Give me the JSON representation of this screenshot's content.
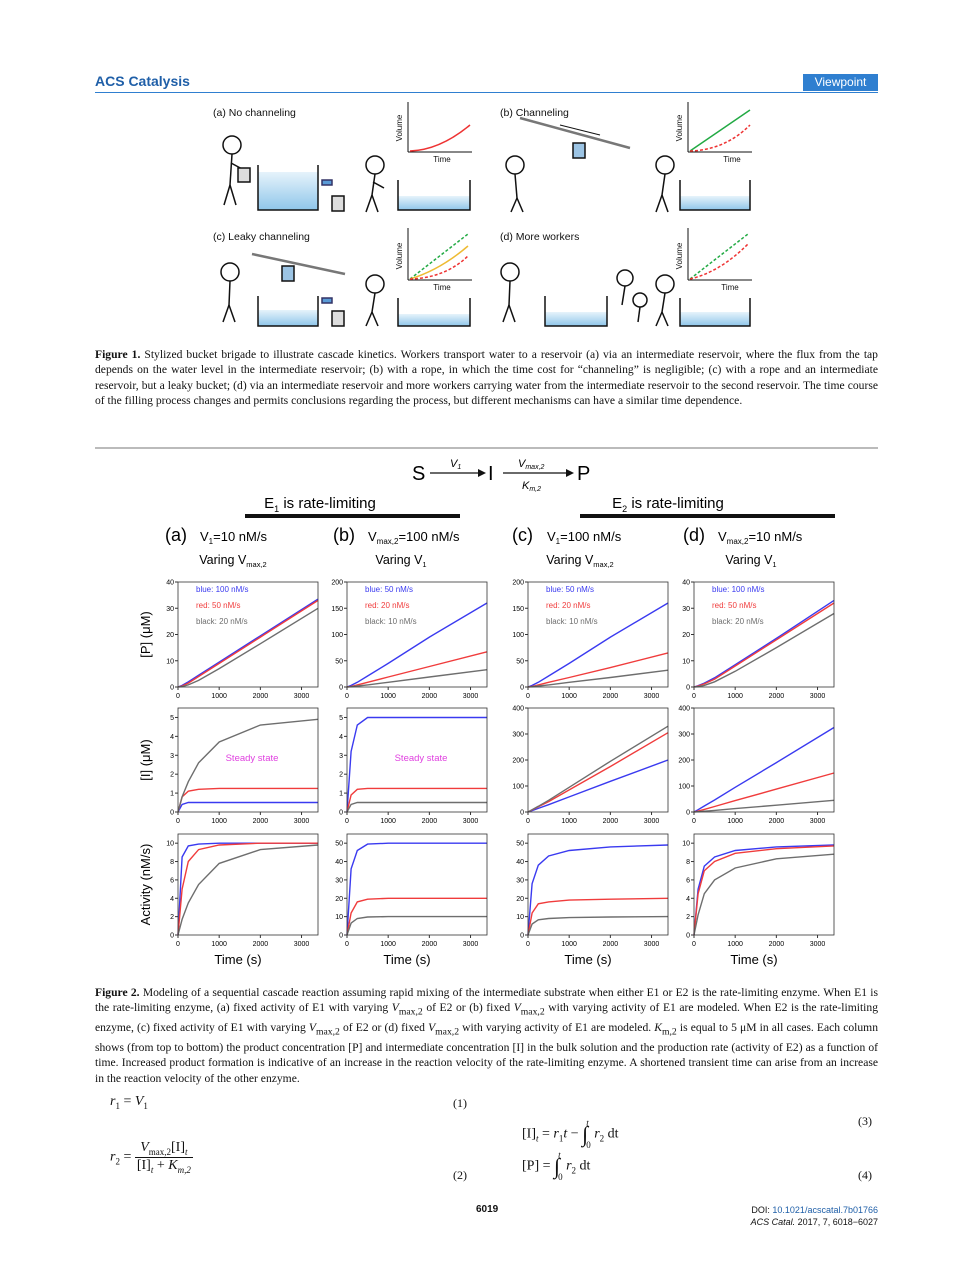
{
  "header": {
    "journal": "ACS Catalysis",
    "section": "Viewpoint"
  },
  "figure1": {
    "panels": [
      {
        "label": "(a) No channeling",
        "y_axis": "Volume",
        "x_axis": "Time"
      },
      {
        "label": "(b) Channeling",
        "y_axis": "Volume",
        "x_axis": "Time"
      },
      {
        "label": "(c) Leaky channeling",
        "y_axis": "Volume",
        "x_axis": "Time"
      },
      {
        "label": "(d) More workers",
        "y_axis": "Volume",
        "x_axis": "Time"
      }
    ],
    "caption_label": "Figure 1.",
    "caption": "Stylized bucket brigade to illustrate cascade kinetics. Workers transport water to a reservoir (a) via an intermediate reservoir, where the flux from the tap depends on the water level in the intermediate reservoir; (b) with a rope, in which the time cost for “channeling” is negligible; (c) with a rope and an intermediate reservoir, but a leaky bucket; (d) via an intermediate reservoir and more workers carrying water from the intermediate reservoir to the second reservoir. The time course of the filling process changes and permits conclusions regarding the process, but different mechanisms can have a similar time dependence."
  },
  "figure2": {
    "scheme": {
      "s": "S",
      "v1": "V",
      "v1_sub": "1",
      "i": "I",
      "vmax": "V",
      "vmax_sub": "max,2",
      "km": "K",
      "km_sub": "m,2",
      "p": "P"
    },
    "headings": [
      {
        "pre": "E",
        "sub": "1",
        "post": " is rate-limiting"
      },
      {
        "pre": "E",
        "sub": "2",
        "post": " is rate-limiting"
      }
    ],
    "columns": [
      {
        "label": "(a)",
        "param": {
          "pre": "V",
          "sub": "1",
          "post": "=10 nM/s"
        },
        "vary": {
          "pre": "Varing V",
          "sub": "max,2"
        }
      },
      {
        "label": "(b)",
        "param": {
          "pre": "V",
          "sub": "max,2",
          "post": "=100 nM/s"
        },
        "vary": {
          "pre": "Varing V",
          "sub": "1"
        }
      },
      {
        "label": "(c)",
        "param": {
          "pre": "V",
          "sub": "1",
          "post": "=100 nM/s"
        },
        "vary": {
          "pre": "Varing V",
          "sub": "max,2"
        }
      },
      {
        "label": "(d)",
        "param": {
          "pre": "V",
          "sub": "max,2",
          "post": "=10 nM/s"
        },
        "vary": {
          "pre": "Varing V",
          "sub": "1"
        }
      }
    ],
    "row_titles": [
      "[P] (μM)",
      "[I] (μM)",
      "Activity (nM/s)"
    ],
    "x_title": "Time (s)",
    "charts": [
      {
        "type": "line",
        "x": [
          0,
          100,
          250,
          500,
          1000,
          2000,
          3400
        ],
        "xlim": [
          0,
          3400
        ],
        "xticks": [
          0,
          1000,
          2000,
          3000
        ],
        "ylim": [
          0,
          40
        ],
        "yticks": [
          0,
          10,
          20,
          30,
          40
        ],
        "series": [
          {
            "name": "blue: 100 nM/s",
            "color": "#3a3af0",
            "values": [
              0,
              0.6,
              2,
              4.5,
              9.5,
              19.5,
              33.5
            ]
          },
          {
            "name": "red: 50 nM/s",
            "color": "#f03c3c",
            "values": [
              0,
              0.4,
              1.5,
              4,
              9,
              19,
              33
            ]
          },
          {
            "name": "black: 20 nM/s",
            "color": "#6e6e6e",
            "values": [
              0,
              0.15,
              0.8,
              2.5,
              7,
              16.5,
              30
            ]
          }
        ]
      },
      {
        "type": "line",
        "x": [
          0,
          100,
          250,
          500,
          1000,
          2000,
          3400
        ],
        "xlim": [
          0,
          3400
        ],
        "xticks": [
          0,
          1000,
          2000,
          3000
        ],
        "ylim": [
          0,
          200
        ],
        "yticks": [
          0,
          50,
          100,
          150,
          200
        ],
        "series": [
          {
            "name": "blue: 50 nM/s",
            "color": "#3a3af0",
            "values": [
              0,
              3,
              9,
              21,
              45,
              95,
              160
            ]
          },
          {
            "name": "red: 20 nM/s",
            "color": "#f03c3c",
            "values": [
              0,
              1.2,
              4,
              9,
              19,
              39,
              67
            ]
          },
          {
            "name": "black: 10 nM/s",
            "color": "#6e6e6e",
            "values": [
              0,
              0.5,
              2,
              4,
              9,
              19,
              33
            ]
          }
        ]
      },
      {
        "type": "line",
        "x": [
          0,
          100,
          250,
          500,
          1000,
          2000,
          3400
        ],
        "xlim": [
          0,
          3400
        ],
        "xticks": [
          0,
          1000,
          2000,
          3000
        ],
        "ylim": [
          0,
          200
        ],
        "yticks": [
          0,
          50,
          100,
          150,
          200
        ],
        "series": [
          {
            "name": "blue: 50 nM/s",
            "color": "#3a3af0",
            "values": [
              0,
              3,
              9,
              21,
              45,
              95,
              160
            ]
          },
          {
            "name": "red: 20 nM/s",
            "color": "#f03c3c",
            "values": [
              0,
              1.2,
              4,
              9,
              18,
              37,
              65
            ]
          },
          {
            "name": "black: 10 nM/s",
            "color": "#6e6e6e",
            "values": [
              0,
              0.5,
              2,
              4,
              9,
              18,
              32
            ]
          }
        ]
      },
      {
        "type": "line",
        "x": [
          0,
          100,
          250,
          500,
          1000,
          2000,
          3400
        ],
        "xlim": [
          0,
          3400
        ],
        "xticks": [
          0,
          1000,
          2000,
          3000
        ],
        "ylim": [
          0,
          40
        ],
        "yticks": [
          0,
          10,
          20,
          30,
          40
        ],
        "series": [
          {
            "name": "blue: 100 nM/s",
            "color": "#3a3af0",
            "values": [
              0,
              0.5,
              1.5,
              3.5,
              8.5,
              18.5,
              33
            ]
          },
          {
            "name": "red: 50 nM/s",
            "color": "#f03c3c",
            "values": [
              0,
              0.4,
              1.2,
              3,
              8,
              18,
              32
            ]
          },
          {
            "name": "black: 20 nM/s",
            "color": "#6e6e6e",
            "values": [
              0,
              0.15,
              0.6,
              2,
              6,
              15,
              28
            ]
          }
        ]
      },
      {
        "type": "line",
        "x": [
          0,
          100,
          250,
          500,
          1000,
          2000,
          3400
        ],
        "xlim": [
          0,
          3400
        ],
        "xticks": [
          0,
          1000,
          2000,
          3000
        ],
        "ylim": [
          0,
          5.5
        ],
        "yticks": [
          0,
          1,
          2,
          3,
          4,
          5
        ],
        "annotation": "Steady state",
        "series": [
          {
            "color": "#3a3af0",
            "values": [
              0,
              0.4,
              0.5,
              0.5,
              0.5,
              0.5,
              0.5
            ]
          },
          {
            "color": "#f03c3c",
            "values": [
              0,
              0.8,
              1.1,
              1.2,
              1.25,
              1.25,
              1.25
            ]
          },
          {
            "color": "#6e6e6e",
            "values": [
              0,
              0.8,
              1.6,
              2.6,
              3.7,
              4.6,
              4.9
            ]
          }
        ]
      },
      {
        "type": "line",
        "x": [
          0,
          100,
          250,
          500,
          1000,
          2000,
          3400
        ],
        "xlim": [
          0,
          3400
        ],
        "xticks": [
          0,
          1000,
          2000,
          3000
        ],
        "ylim": [
          0,
          5.5
        ],
        "yticks": [
          0,
          1,
          2,
          3,
          4,
          5
        ],
        "annotation": "Steady state",
        "series": [
          {
            "color": "#3a3af0",
            "values": [
              0,
              3.2,
              4.6,
              5,
              5,
              5,
              5
            ]
          },
          {
            "color": "#f03c3c",
            "values": [
              0,
              0.9,
              1.2,
              1.25,
              1.25,
              1.25,
              1.25
            ]
          },
          {
            "color": "#6e6e6e",
            "values": [
              0,
              0.4,
              0.5,
              0.5,
              0.5,
              0.5,
              0.5
            ]
          }
        ]
      },
      {
        "type": "line",
        "x": [
          0,
          100,
          250,
          500,
          1000,
          2000,
          3400
        ],
        "xlim": [
          0,
          3400
        ],
        "xticks": [
          0,
          1000,
          2000,
          3000
        ],
        "ylim": [
          0,
          400
        ],
        "yticks": [
          0,
          100,
          200,
          300,
          400
        ],
        "series": [
          {
            "color": "#3a3af0",
            "values": [
              0,
              5.5,
              14,
              28,
              58,
              118,
              200
            ]
          },
          {
            "color": "#f03c3c",
            "values": [
              0,
              8,
              20,
              40,
              85,
              175,
              305
            ]
          },
          {
            "color": "#6e6e6e",
            "values": [
              0,
              9,
              22,
              45,
              95,
              195,
              330
            ]
          }
        ]
      },
      {
        "type": "line",
        "x": [
          0,
          100,
          250,
          500,
          1000,
          2000,
          3400
        ],
        "xlim": [
          0,
          3400
        ],
        "xticks": [
          0,
          1000,
          2000,
          3000
        ],
        "ylim": [
          0,
          400
        ],
        "yticks": [
          0,
          100,
          200,
          300,
          400
        ],
        "series": [
          {
            "color": "#3a3af0",
            "values": [
              0,
              9,
              23,
              46,
              95,
              190,
              325
            ]
          },
          {
            "color": "#f03c3c",
            "values": [
              0,
              4,
              10,
              21,
              44,
              88,
              150
            ]
          },
          {
            "color": "#6e6e6e",
            "values": [
              0,
              1.2,
              3,
              6,
              13,
              26,
              45
            ]
          }
        ]
      },
      {
        "type": "line",
        "x": [
          0,
          100,
          250,
          500,
          1000,
          2000,
          3400
        ],
        "xlim": [
          0,
          3400
        ],
        "xticks": [
          0,
          1000,
          2000,
          3000
        ],
        "ylim": [
          0,
          11
        ],
        "yticks": [
          0,
          2,
          4,
          6,
          8,
          10
        ],
        "series": [
          {
            "color": "#3a3af0",
            "values": [
              0,
              8.5,
              9.7,
              9.9,
              10,
              10,
              10
            ]
          },
          {
            "color": "#f03c3c",
            "values": [
              0,
              5,
              8,
              9.3,
              9.8,
              10,
              10
            ]
          },
          {
            "color": "#6e6e6e",
            "values": [
              0,
              1.7,
              3.5,
              5.5,
              7.8,
              9.3,
              9.8
            ]
          }
        ]
      },
      {
        "type": "line",
        "x": [
          0,
          100,
          250,
          500,
          1000,
          2000,
          3400
        ],
        "xlim": [
          0,
          3400
        ],
        "xticks": [
          0,
          1000,
          2000,
          3000
        ],
        "ylim": [
          0,
          55
        ],
        "yticks": [
          0,
          10,
          20,
          30,
          40,
          50
        ],
        "series": [
          {
            "color": "#3a3af0",
            "values": [
              0,
              36,
              46,
              49.5,
              50,
              50,
              50
            ]
          },
          {
            "color": "#f03c3c",
            "values": [
              0,
              12,
              18,
              19.5,
              20,
              20,
              20
            ]
          },
          {
            "color": "#6e6e6e",
            "values": [
              0,
              6.5,
              9,
              9.8,
              10,
              10,
              10
            ]
          }
        ]
      },
      {
        "type": "line",
        "x": [
          0,
          100,
          250,
          500,
          1000,
          2000,
          3400
        ],
        "xlim": [
          0,
          3400
        ],
        "xticks": [
          0,
          1000,
          2000,
          3000
        ],
        "ylim": [
          0,
          55
        ],
        "yticks": [
          0,
          10,
          20,
          30,
          40,
          50
        ],
        "series": [
          {
            "color": "#3a3af0",
            "values": [
              0,
              28,
              38,
              43,
              46,
              48,
              49
            ]
          },
          {
            "color": "#f03c3c",
            "values": [
              0,
              12,
              17,
              18,
              19,
              19.5,
              20
            ]
          },
          {
            "color": "#6e6e6e",
            "values": [
              0,
              6,
              8.3,
              9,
              9.5,
              9.8,
              10
            ]
          }
        ]
      },
      {
        "type": "line",
        "x": [
          0,
          100,
          250,
          500,
          1000,
          2000,
          3400
        ],
        "xlim": [
          0,
          3400
        ],
        "xticks": [
          0,
          1000,
          2000,
          3000
        ],
        "ylim": [
          0,
          11
        ],
        "yticks": [
          0,
          2,
          4,
          6,
          8,
          10
        ],
        "series": [
          {
            "color": "#3a3af0",
            "values": [
              0,
              5,
              7.5,
              8.5,
              9.2,
              9.6,
              9.8
            ]
          },
          {
            "color": "#f03c3c",
            "values": [
              0,
              4.5,
              7,
              8,
              8.9,
              9.4,
              9.7
            ]
          },
          {
            "color": "#6e6e6e",
            "values": [
              0,
              2.2,
              4.5,
              6,
              7.3,
              8.3,
              8.8
            ]
          }
        ]
      }
    ],
    "caption_label": "Figure 2.",
    "caption": [
      "Modeling of a sequential cascade reaction assuming rapid mixing of the intermediate substrate when either E1 or E2 is the rate-limiting enzyme. When E1 is the rate-limiting enzyme, (a) fixed activity of E1 with varying ",
      "V",
      "max,2",
      " of E2 or (b) fixed ",
      "V",
      "max,2",
      " with varying activity of E1 are modeled. When E2 is the rate-limiting enzyme, (c) fixed activity of E1 with varying ",
      "V",
      "max,2",
      " of E2 or (d) fixed ",
      "V",
      "max,2",
      " with varying activity of E1 are modeled. ",
      "K",
      "m,2",
      " is equal to 5 μM in all cases. Each column shows (from top to bottom) the product concentration [P] and intermediate concentration [I] in the bulk solution and the production rate (activity of E2) as a function of time. Increased product formation is indicative of an increase in the reaction velocity of the rate-limiting enzyme. A shortened transient time can arise from an increase in the reaction velocity of the other enzyme."
    ]
  },
  "equations": [
    {
      "parts": [
        "r",
        "1",
        "=",
        "V",
        "1"
      ],
      "number": "(1)"
    },
    {
      "parts": [
        "r",
        "2",
        "=",
        "V",
        "max,2",
        "[I]",
        "t",
        "[I]",
        "t",
        "+",
        "K",
        "m,2"
      ],
      "number": "(2)"
    },
    {
      "parts": [
        "[I]",
        "t",
        "=",
        "r",
        "1",
        "t",
        "−",
        "∫",
        "t",
        "0",
        "r",
        "2",
        "dt"
      ],
      "number": "(3)"
    },
    {
      "parts": [
        "[P]",
        "=",
        "∫",
        "t",
        "0",
        "r",
        "2",
        "dt"
      ],
      "number": "(4)"
    }
  ],
  "footer": {
    "page": "6019",
    "doi_label": "DOI: ",
    "doi": "10.1021/acscatal.7b01766",
    "journal": "ACS Catal.",
    "citation": " 2017, 7, 6018−6027"
  }
}
